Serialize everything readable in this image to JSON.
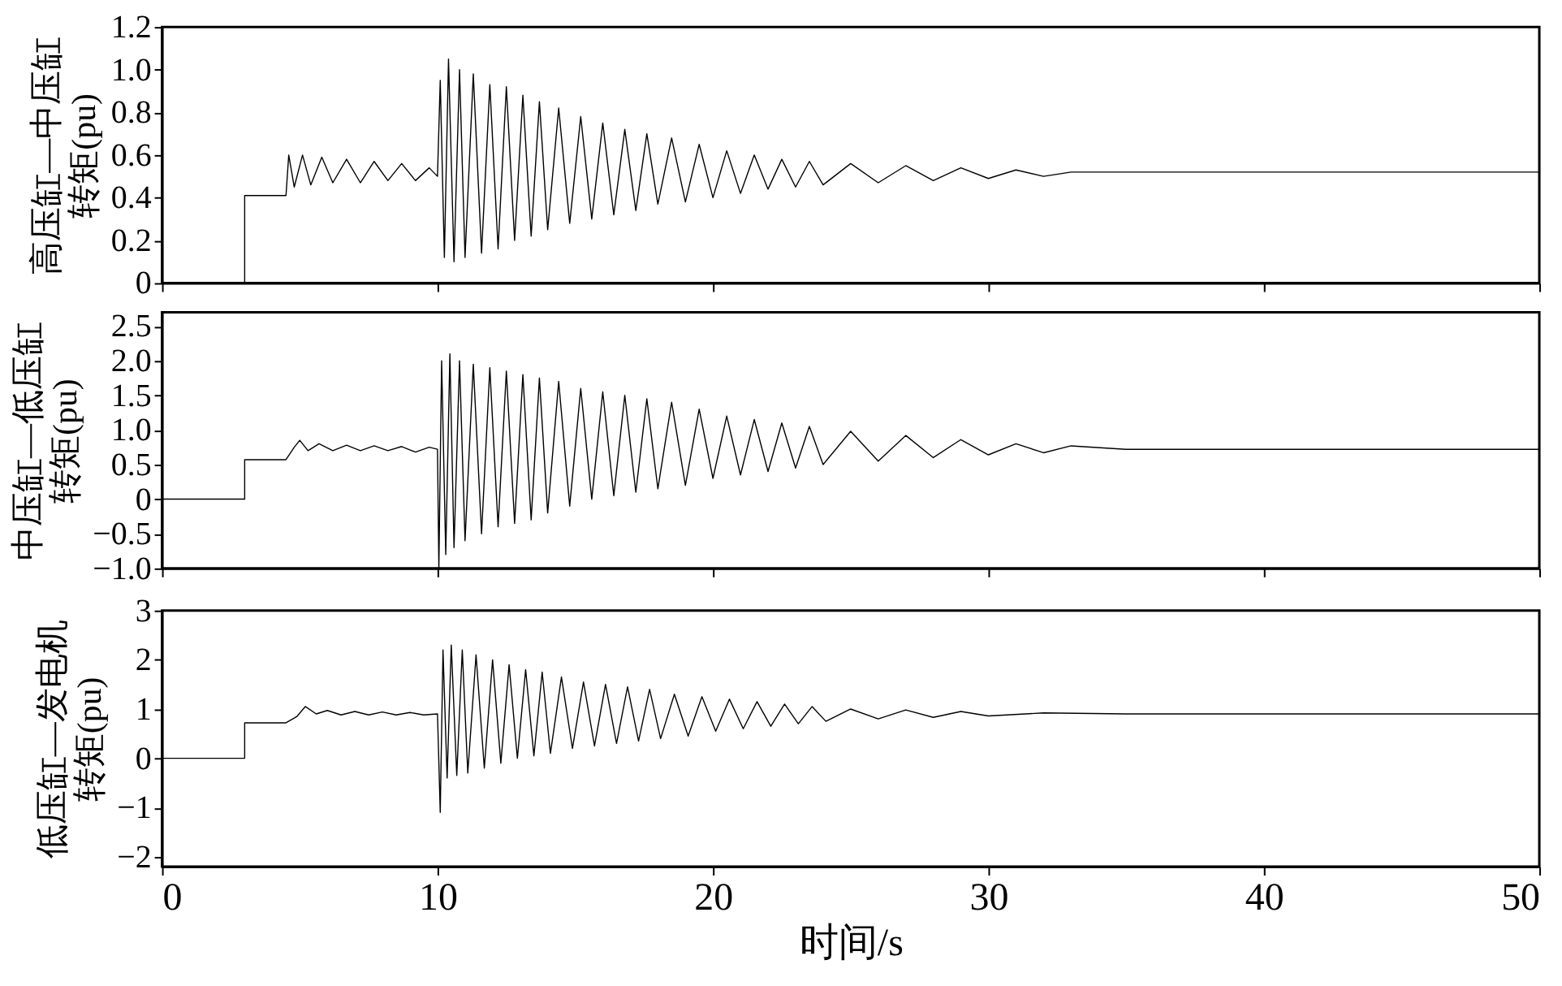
{
  "chart_data": [
    {
      "type": "line",
      "ylabel": "高压缸—中压缸转矩(pu)",
      "tick_labels": "y",
      "xlim": [
        0,
        50
      ],
      "xticks": [
        0,
        10,
        20,
        30,
        40,
        50
      ],
      "ylim": [
        0,
        1.2
      ],
      "yticks": [
        0,
        0.2,
        0.4,
        0.6,
        0.8,
        {
          "value": 1,
          "label": "1.0"
        },
        1.2
      ],
      "series": [
        {
          "color": "#000000",
          "x": [
            0,
            3,
            3,
            4.5,
            4.6,
            4.8,
            5.1,
            5.4,
            5.8,
            6.2,
            6.7,
            7.2,
            7.7,
            8.2,
            8.7,
            9.2,
            9.7,
            10,
            10.1,
            10.25,
            10.4,
            10.6,
            10.8,
            11,
            11.3,
            11.6,
            11.9,
            12.2,
            12.5,
            12.8,
            13.1,
            13.4,
            13.7,
            14,
            14.4,
            14.8,
            15.2,
            15.6,
            16,
            16.4,
            16.8,
            17.2,
            17.6,
            18,
            18.5,
            19,
            19.5,
            20,
            20.5,
            21,
            21.5,
            22,
            22.5,
            23,
            23.5,
            24,
            25,
            26,
            27,
            28,
            29,
            30,
            31,
            32,
            33,
            35,
            50
          ],
          "values": [
            0,
            0,
            0.41,
            0.41,
            0.6,
            0.45,
            0.6,
            0.46,
            0.59,
            0.47,
            0.58,
            0.47,
            0.57,
            0.48,
            0.56,
            0.48,
            0.54,
            0.5,
            0.95,
            0.12,
            1.05,
            0.1,
            1.0,
            0.12,
            0.98,
            0.14,
            0.93,
            0.16,
            0.92,
            0.2,
            0.88,
            0.22,
            0.85,
            0.25,
            0.82,
            0.28,
            0.78,
            0.3,
            0.75,
            0.32,
            0.72,
            0.34,
            0.7,
            0.37,
            0.68,
            0.38,
            0.65,
            0.4,
            0.62,
            0.42,
            0.6,
            0.44,
            0.58,
            0.45,
            0.57,
            0.46,
            0.56,
            0.47,
            0.55,
            0.48,
            0.54,
            0.49,
            0.53,
            0.5,
            0.52,
            0.52,
            0.52
          ]
        }
      ]
    },
    {
      "type": "line",
      "ylabel": "中压缸—低压缸转矩(pu)",
      "tick_labels": "y",
      "xlim": [
        0,
        50
      ],
      "xticks": [
        0,
        10,
        20,
        30,
        40,
        50
      ],
      "ylim": [
        -1,
        2.7
      ],
      "yticks": [
        {
          "value": -1,
          "label": "−1.0"
        },
        {
          "value": -0.5,
          "label": "−0.5"
        },
        0,
        0.5,
        {
          "value": 1,
          "label": "1.0"
        },
        1.5,
        {
          "value": 2,
          "label": "2.0"
        },
        2.5
      ],
      "series": [
        {
          "color": "#000000",
          "x": [
            0,
            3,
            3,
            4.5,
            4.8,
            5.0,
            5.3,
            5.7,
            6.2,
            6.7,
            7.2,
            7.7,
            8.2,
            8.7,
            9.2,
            9.7,
            10,
            10.05,
            10.15,
            10.3,
            10.45,
            10.6,
            10.8,
            11,
            11.3,
            11.6,
            11.9,
            12.2,
            12.5,
            12.8,
            13.1,
            13.4,
            13.7,
            14,
            14.4,
            14.8,
            15.2,
            15.6,
            16,
            16.4,
            16.8,
            17.2,
            17.6,
            18,
            18.5,
            19,
            19.5,
            20,
            20.5,
            21,
            21.5,
            22,
            22.5,
            23,
            23.5,
            24,
            25,
            26,
            27,
            28,
            29,
            30,
            31,
            32,
            33,
            35,
            50
          ],
          "values": [
            0,
            0,
            0.57,
            0.57,
            0.75,
            0.85,
            0.7,
            0.8,
            0.7,
            0.78,
            0.7,
            0.77,
            0.7,
            0.76,
            0.68,
            0.75,
            0.72,
            -1.0,
            2.0,
            -0.8,
            2.1,
            -0.7,
            2.0,
            -0.6,
            1.95,
            -0.5,
            1.9,
            -0.4,
            1.85,
            -0.35,
            1.8,
            -0.3,
            1.75,
            -0.2,
            1.7,
            -0.1,
            1.6,
            0,
            1.55,
            0.05,
            1.5,
            0.1,
            1.45,
            0.15,
            1.4,
            0.2,
            1.3,
            0.3,
            1.2,
            0.35,
            1.15,
            0.4,
            1.1,
            0.45,
            1.05,
            0.5,
            0.98,
            0.55,
            0.92,
            0.6,
            0.86,
            0.64,
            0.8,
            0.67,
            0.77,
            0.72,
            0.72
          ]
        }
      ]
    },
    {
      "type": "line",
      "ylabel": "低压缸—发电机转矩(pu)",
      "xlabel": "时间/s",
      "xlim": [
        0,
        50
      ],
      "xticks": [
        0,
        10,
        20,
        30,
        40,
        50
      ],
      "ylim": [
        -2.2,
        3
      ],
      "yticks": [
        {
          "value": -2,
          "label": "−2"
        },
        {
          "value": -1,
          "label": "−1"
        },
        0,
        1,
        2,
        3
      ],
      "series": [
        {
          "color": "#000000",
          "x": [
            0,
            3,
            3,
            4.5,
            4.9,
            5.2,
            5.6,
            6.0,
            6.5,
            7.0,
            7.5,
            8.0,
            8.5,
            9.0,
            9.5,
            10,
            10.1,
            10.2,
            10.35,
            10.5,
            10.7,
            10.9,
            11.1,
            11.4,
            11.7,
            12.0,
            12.3,
            12.6,
            12.9,
            13.2,
            13.5,
            13.8,
            14.1,
            14.5,
            14.9,
            15.3,
            15.7,
            16.1,
            16.5,
            16.9,
            17.3,
            17.7,
            18.1,
            18.6,
            19.1,
            19.6,
            20.1,
            20.6,
            21.1,
            21.6,
            22.1,
            22.6,
            23.1,
            23.6,
            24.1,
            25,
            26,
            27,
            28,
            29,
            30,
            32,
            35,
            50
          ],
          "values": [
            0,
            0,
            0.72,
            0.72,
            0.85,
            1.05,
            0.9,
            0.97,
            0.88,
            0.95,
            0.88,
            0.94,
            0.88,
            0.93,
            0.88,
            0.9,
            -1.1,
            2.2,
            -0.4,
            2.3,
            -0.35,
            2.2,
            -0.3,
            2.1,
            -0.2,
            2.0,
            -0.1,
            1.9,
            0,
            1.8,
            0.05,
            1.75,
            0.1,
            1.65,
            0.2,
            1.55,
            0.25,
            1.5,
            0.3,
            1.45,
            0.35,
            1.4,
            0.4,
            1.3,
            0.45,
            1.25,
            0.55,
            1.2,
            0.6,
            1.15,
            0.65,
            1.1,
            0.7,
            1.05,
            0.75,
            1.0,
            0.8,
            0.98,
            0.83,
            0.95,
            0.86,
            0.92,
            0.9,
            0.9
          ]
        }
      ]
    }
  ]
}
